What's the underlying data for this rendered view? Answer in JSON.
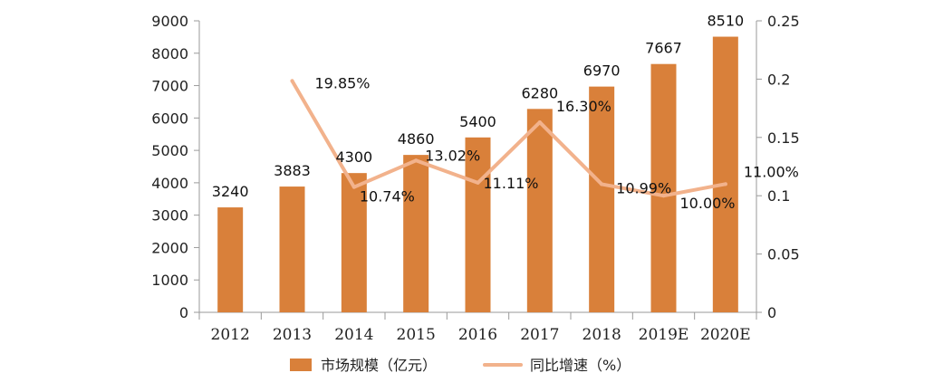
{
  "chart_data": {
    "type": "bar",
    "categories": [
      "2012",
      "2013",
      "2014",
      "2015",
      "2016",
      "2017",
      "2018",
      "2019E",
      "2020E"
    ],
    "series": [
      {
        "name": "市场规模（亿元）",
        "kind": "bar",
        "axis": "left",
        "values": [
          3240,
          3883,
          4300,
          4860,
          5400,
          6280,
          6970,
          7667,
          8510
        ],
        "labels": [
          "3240",
          "3883",
          "4300",
          "4860",
          "5400",
          "6280",
          "6970",
          "7667",
          "8510"
        ]
      },
      {
        "name": "同比增速（%）",
        "kind": "line",
        "axis": "right",
        "values": [
          null,
          0.1985,
          0.1074,
          0.1302,
          0.1111,
          0.163,
          0.1099,
          0.1,
          0.11
        ],
        "labels": [
          "",
          "19.85%",
          "10.74%",
          "13.02%",
          "11.11%",
          "16.30%",
          "10.99%",
          "10.00%",
          "11.00%"
        ]
      }
    ],
    "y_left": {
      "ylim": [
        0,
        9000
      ],
      "ticks": [
        "0",
        "1000",
        "2000",
        "3000",
        "4000",
        "5000",
        "6000",
        "7000",
        "8000",
        "9000"
      ]
    },
    "y_right": {
      "ylim": [
        0,
        0.25
      ],
      "ticks": [
        "0",
        "0.05",
        "0.1",
        "0.15",
        "0.2",
        "0.25"
      ]
    },
    "title": "",
    "xlabel": "",
    "legend_position": "bottom",
    "colors": {
      "bar": "#d9803a",
      "line": "#f2b28c",
      "axis": "#9a9a9a"
    }
  }
}
